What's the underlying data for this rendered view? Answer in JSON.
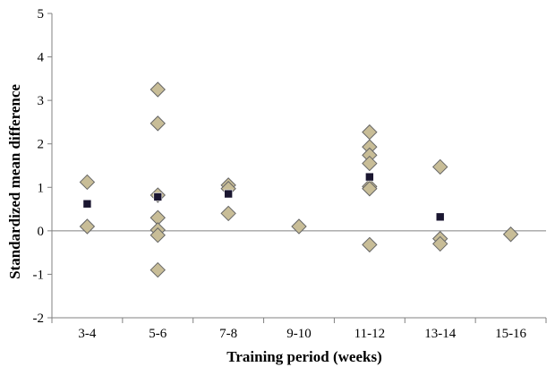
{
  "chart_data": {
    "type": "scatter",
    "title": "",
    "xlabel": "Training period (weeks)",
    "ylabel": "Standardized mean difference",
    "categories": [
      "3-4",
      "5-6",
      "7-8",
      "9-10",
      "11-12",
      "13-14",
      "15-16"
    ],
    "ylim": [
      -2,
      5
    ],
    "yticks": [
      -2,
      -1,
      0,
      1,
      2,
      3,
      4,
      5
    ],
    "grid": false,
    "legend": "none",
    "series": [
      {
        "marker": "diamond",
        "color": "#c8bd97",
        "stroke": "#666666",
        "points": [
          {
            "category": "3-4",
            "y": 1.12
          },
          {
            "category": "3-4",
            "y": 0.1
          },
          {
            "category": "5-6",
            "y": 3.25
          },
          {
            "category": "5-6",
            "y": 2.47
          },
          {
            "category": "5-6",
            "y": 0.82
          },
          {
            "category": "5-6",
            "y": 0.3
          },
          {
            "category": "5-6",
            "y": 0.02
          },
          {
            "category": "5-6",
            "y": -0.1
          },
          {
            "category": "5-6",
            "y": -0.9
          },
          {
            "category": "7-8",
            "y": 1.05
          },
          {
            "category": "7-8",
            "y": 0.97
          },
          {
            "category": "7-8",
            "y": 0.4
          },
          {
            "category": "9-10",
            "y": 0.1
          },
          {
            "category": "11-12",
            "y": 2.27
          },
          {
            "category": "11-12",
            "y": 1.93
          },
          {
            "category": "11-12",
            "y": 1.74
          },
          {
            "category": "11-12",
            "y": 1.55
          },
          {
            "category": "11-12",
            "y": 1.02
          },
          {
            "category": "11-12",
            "y": 0.97
          },
          {
            "category": "11-12",
            "y": -0.32
          },
          {
            "category": "13-14",
            "y": 1.47
          },
          {
            "category": "13-14",
            "y": -0.18
          },
          {
            "category": "13-14",
            "y": -0.3
          },
          {
            "category": "15-16",
            "y": -0.08
          }
        ]
      },
      {
        "marker": "square",
        "color": "#1a1630",
        "points": [
          {
            "category": "3-4",
            "y": 0.62
          },
          {
            "category": "5-6",
            "y": 0.78
          },
          {
            "category": "7-8",
            "y": 0.85
          },
          {
            "category": "11-12",
            "y": 1.24
          },
          {
            "category": "13-14",
            "y": 0.32
          }
        ]
      }
    ]
  }
}
